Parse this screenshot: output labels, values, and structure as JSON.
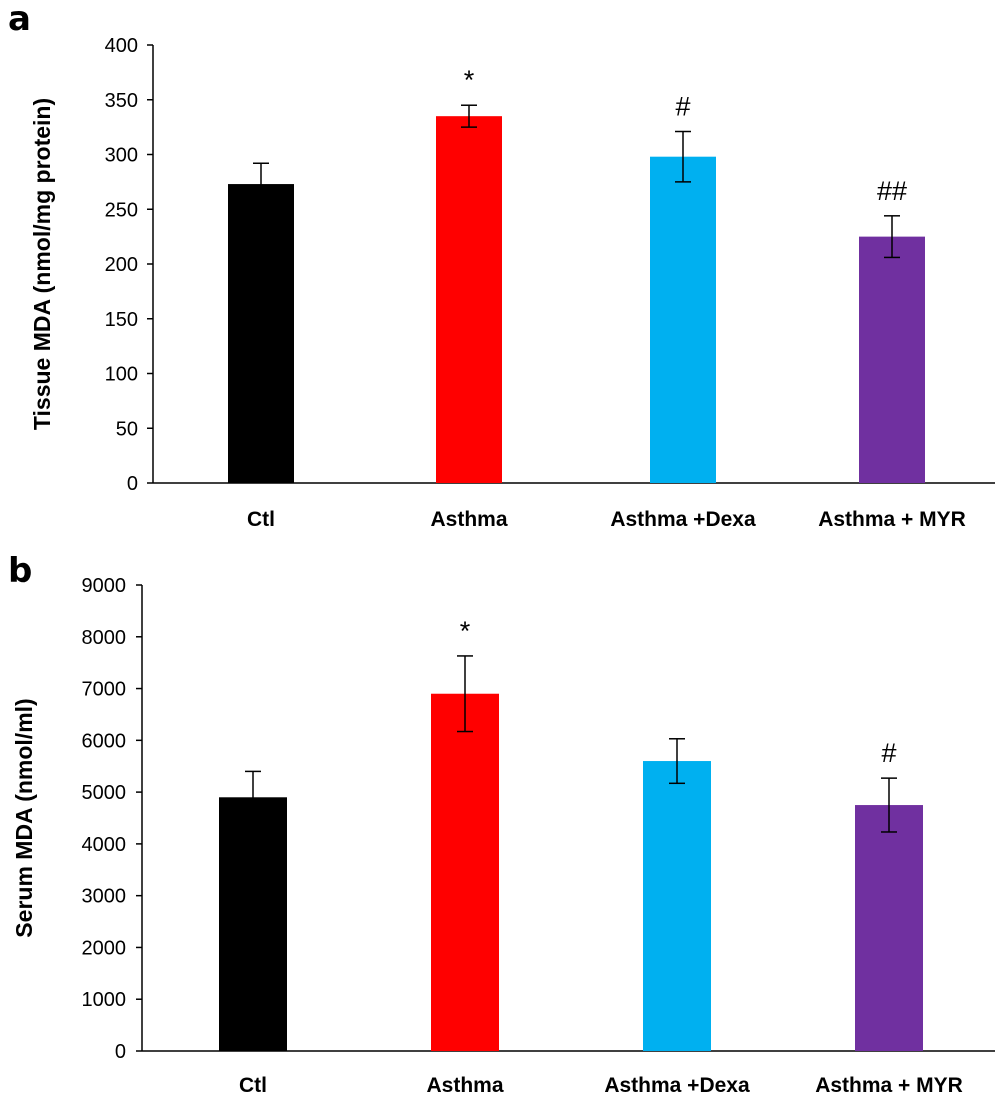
{
  "chart_data": [
    {
      "panel": "a",
      "type": "bar",
      "categories": [
        "Ctl",
        "Asthma",
        "Asthma +Dexa",
        "Asthma + MYR"
      ],
      "values": [
        273,
        335,
        298,
        225
      ],
      "errors": [
        19,
        10,
        23,
        19
      ],
      "significance": [
        "",
        "*",
        "#",
        "##"
      ],
      "colors": [
        "#000000",
        "#ff0000",
        "#00b0f0",
        "#7030a0"
      ],
      "ylabel": "Tissue MDA (nmol/mg protein)",
      "xlabel": "",
      "ylim": [
        0,
        400
      ],
      "yticks": [
        0,
        50,
        100,
        150,
        200,
        250,
        300,
        350,
        400
      ],
      "grid": false
    },
    {
      "panel": "b",
      "type": "bar",
      "categories": [
        "Ctl",
        "Asthma",
        "Asthma +Dexa",
        "Asthma + MYR"
      ],
      "values": [
        4900,
        6900,
        5600,
        4750
      ],
      "errors": [
        500,
        730,
        430,
        520
      ],
      "significance": [
        "",
        "*",
        "",
        "#"
      ],
      "colors": [
        "#000000",
        "#ff0000",
        "#00b0f0",
        "#7030a0"
      ],
      "ylabel": "Serum MDA (nmol/ml)",
      "xlabel": "",
      "ylim": [
        0,
        9000
      ],
      "yticks": [
        0,
        1000,
        2000,
        3000,
        4000,
        5000,
        6000,
        7000,
        8000,
        9000
      ],
      "grid": false
    }
  ]
}
